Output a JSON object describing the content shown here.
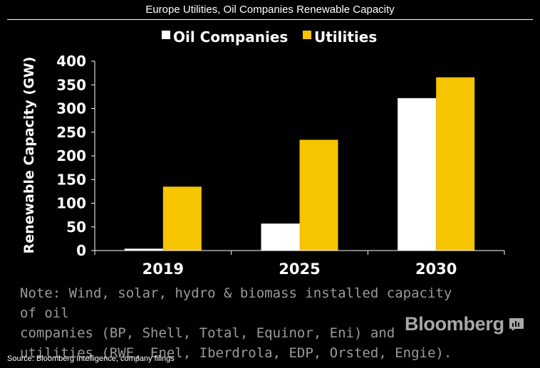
{
  "header": {
    "title": "Europe Utilities, Oil Companies Renewable Capacity"
  },
  "chart_data": {
    "type": "bar",
    "categories": [
      "2019",
      "2025",
      "2030"
    ],
    "series": [
      {
        "name": "Oil Companies",
        "values": [
          4,
          57,
          322
        ],
        "color": "#ffffff"
      },
      {
        "name": "Utilities",
        "values": [
          135,
          234,
          366
        ],
        "color": "#f7c400"
      }
    ],
    "ylabel": "Renewable Capacity (GW)",
    "ylim": [
      0,
      400
    ],
    "yticks": [
      "0",
      "50",
      "100",
      "150",
      "200",
      "250",
      "300",
      "350",
      "400"
    ],
    "grid": false,
    "legend_position": "top-center"
  },
  "footer": {
    "note": "Note: Wind, solar, hydro & biomass installed capacity of oil\ncompanies (BP, Shell, Total, Equinor, Eni) and\nutilities (RWE, Enel, Iberdrola, EDP, Orsted, Engie).",
    "brand": "Bloomberg",
    "source": "Source: Bloomberg Intelligence, company filings",
    "brand_icon": "bar-chart-icon"
  }
}
